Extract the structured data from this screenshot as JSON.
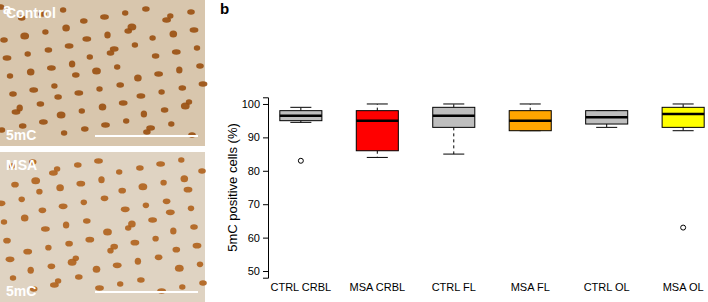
{
  "panel_labels": [
    "a",
    "b"
  ],
  "images": [
    {
      "label": "Control",
      "stain": "5mC"
    },
    {
      "label": "MSA",
      "stain": "5mC"
    }
  ],
  "chart_data": {
    "type": "box",
    "ylabel": "5mC positive cells (%)",
    "categories": [
      "CTRL CRBL",
      "MSA CRBL",
      "CTRL FL",
      "MSA FL",
      "CTRL OL",
      "MSA OL"
    ],
    "min": [
      94.5,
      84,
      85,
      92,
      93,
      92
    ],
    "q1": [
      95,
      86,
      93,
      92,
      94,
      93
    ],
    "median": [
      96.5,
      95,
      96.5,
      95,
      96,
      97
    ],
    "q3": [
      98,
      98,
      99,
      98,
      98,
      99
    ],
    "max": [
      99,
      100,
      100,
      100,
      98,
      100
    ],
    "outliers": [
      [
        83
      ],
      [],
      [],
      [],
      [],
      [
        63
      ]
    ],
    "colors": [
      "#bebebe",
      "#ff0000",
      "#bebebe",
      "#ffa500",
      "#bebebe",
      "#ffff00"
    ],
    "ylim": [
      48,
      102
    ],
    "yticks": [
      50,
      60,
      70,
      80,
      90,
      100
    ]
  }
}
